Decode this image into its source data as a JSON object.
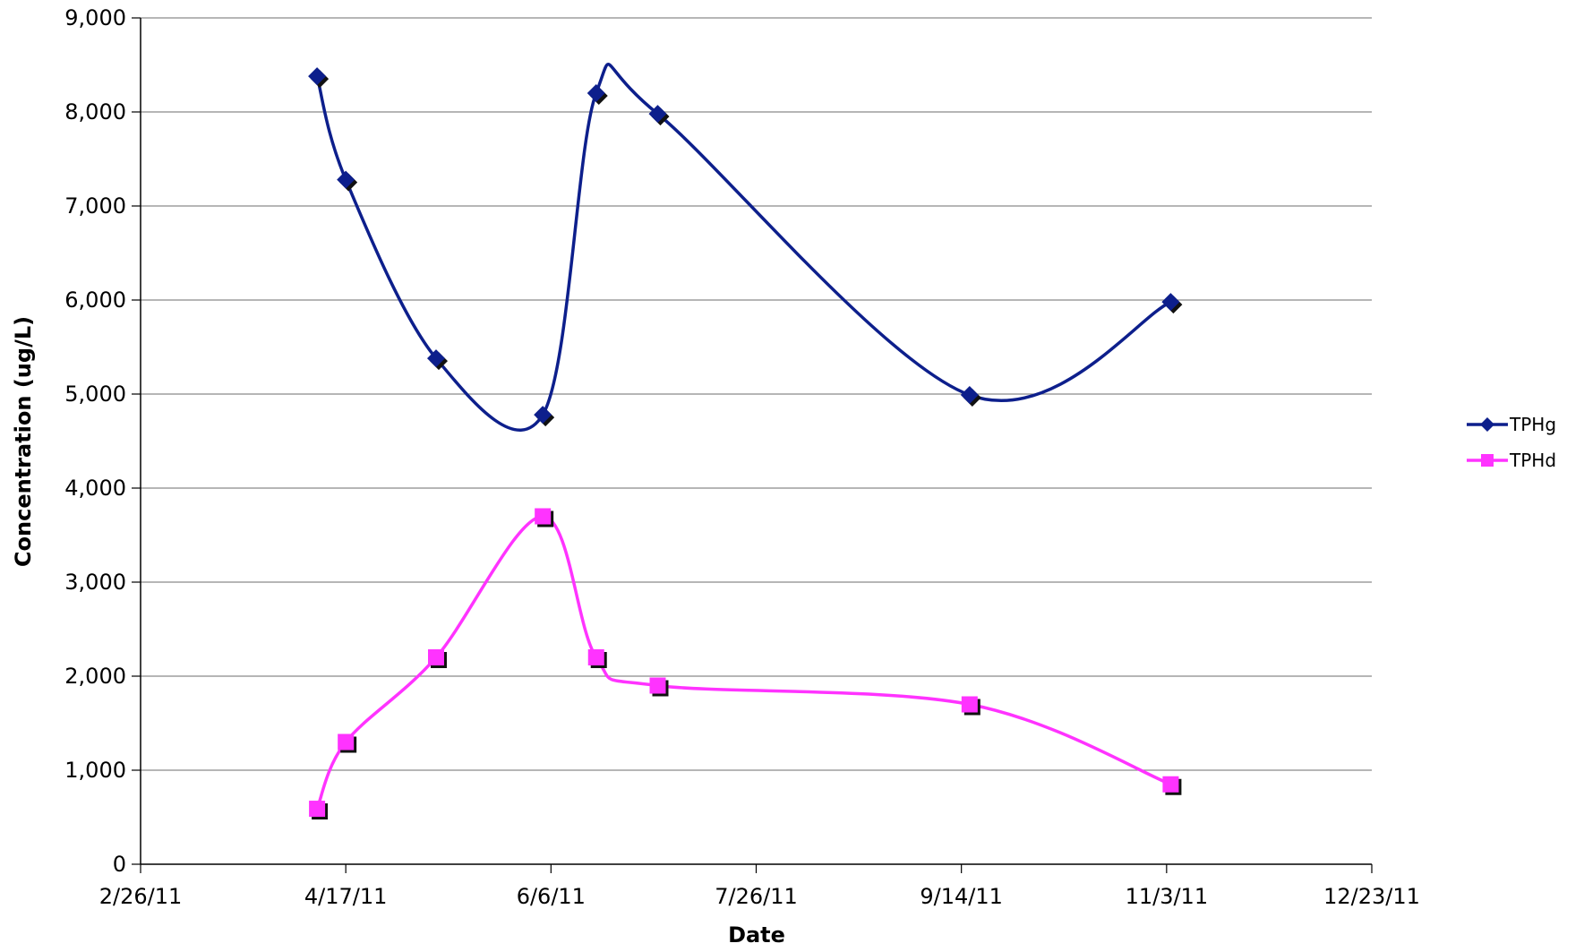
{
  "chart_data": {
    "type": "line",
    "title": "",
    "xlabel": "Date",
    "ylabel": "Concentration (ug/L)",
    "x_tick_labels": [
      "2/26/11",
      "4/17/11",
      "6/6/11",
      "7/26/11",
      "9/14/11",
      "11/3/11",
      "12/23/11"
    ],
    "y_tick_labels": [
      "0",
      "1,000",
      "2,000",
      "3,000",
      "4,000",
      "5,000",
      "6,000",
      "7,000",
      "8,000",
      "9,000"
    ],
    "xlim": [
      "2011-02-26",
      "2011-12-23"
    ],
    "ylim": [
      0,
      9000
    ],
    "grid": "horizontal",
    "legend_position": "right",
    "smoothed": true,
    "series": [
      {
        "name": "TPHg",
        "color": "#0D1F8C",
        "marker": "diamond",
        "points": [
          {
            "x": "2011-04-10",
            "y": 8380
          },
          {
            "x": "2011-04-17",
            "y": 7280
          },
          {
            "x": "2011-05-09",
            "y": 5380
          },
          {
            "x": "2011-06-04",
            "y": 4780
          },
          {
            "x": "2011-06-17",
            "y": 8200
          },
          {
            "x": "2011-07-02",
            "y": 7980
          },
          {
            "x": "2011-09-16",
            "y": 4990
          },
          {
            "x": "2011-11-04",
            "y": 5980
          }
        ]
      },
      {
        "name": "TPHd",
        "color": "#FF33FF",
        "marker": "square",
        "points": [
          {
            "x": "2011-04-10",
            "y": 590
          },
          {
            "x": "2011-04-17",
            "y": 1300
          },
          {
            "x": "2011-05-09",
            "y": 2200
          },
          {
            "x": "2011-06-04",
            "y": 3700
          },
          {
            "x": "2011-06-17",
            "y": 2200
          },
          {
            "x": "2011-07-02",
            "y": 1900
          },
          {
            "x": "2011-09-16",
            "y": 1700
          },
          {
            "x": "2011-11-04",
            "y": 850
          }
        ]
      }
    ]
  }
}
